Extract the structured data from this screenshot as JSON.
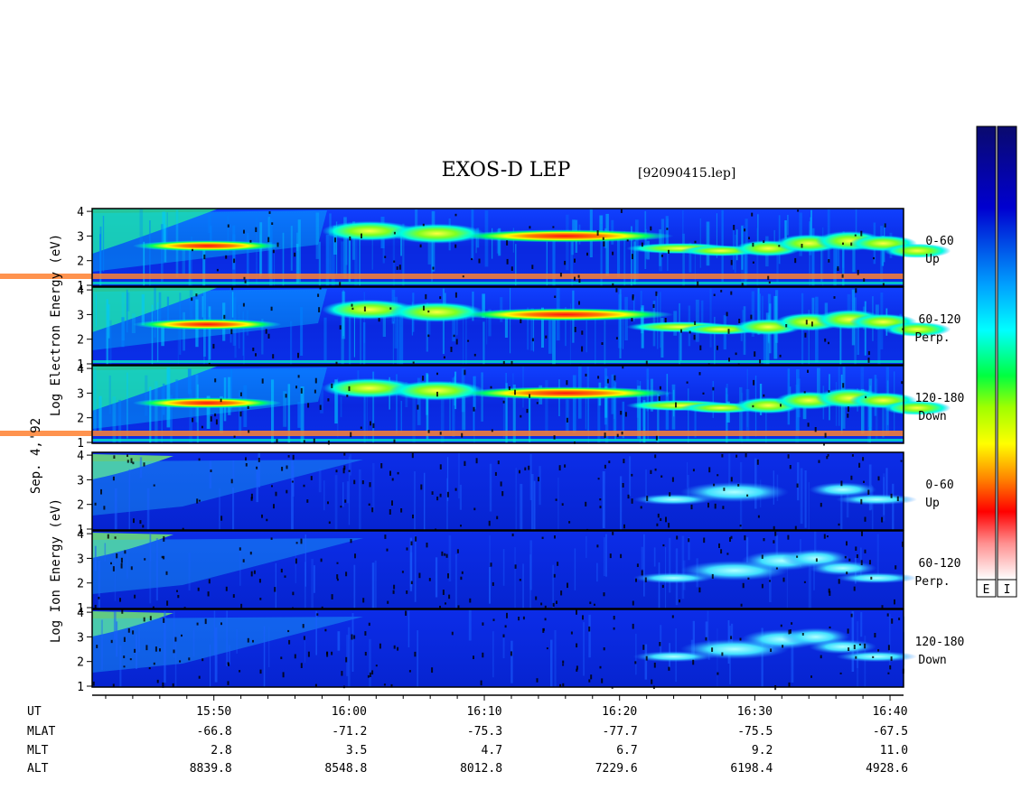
{
  "header": {
    "title": "EXOS-D LEP",
    "filename": "[92090415.lep]"
  },
  "date_label": "Sep. 4,'92",
  "colorbar_labels": [
    "E",
    "I"
  ],
  "chart_data": {
    "type": "heatmap",
    "time_range": [
      "15:41",
      "16:41"
    ],
    "y_ticks": [
      "1",
      "2",
      "3",
      "4"
    ],
    "groups": [
      {
        "name": "electron",
        "ylabel_lines": [
          "Log",
          "Electron",
          "Energy",
          "(eV)"
        ],
        "panels": [
          {
            "pitch": "0-60",
            "dir": "Up"
          },
          {
            "pitch": "60-120",
            "dir": "Perp."
          },
          {
            "pitch": "120-180",
            "dir": "Down"
          }
        ]
      },
      {
        "name": "ion",
        "ylabel_lines": [
          "Log",
          "Ion",
          "Energy",
          "(eV)"
        ],
        "panels": [
          {
            "pitch": "0-60",
            "dir": "Up"
          },
          {
            "pitch": "60-120",
            "dir": "Perp."
          },
          {
            "pitch": "120-180",
            "dir": "Down"
          }
        ]
      }
    ],
    "ephemeris": {
      "row_labels": [
        "UT",
        "MLAT",
        "MLT",
        "ALT"
      ],
      "columns": [
        {
          "UT": "15:50",
          "MLAT": "-66.8",
          "MLT": "2.8",
          "ALT": "8839.8"
        },
        {
          "UT": "16:00",
          "MLAT": "-71.2",
          "MLT": "3.5",
          "ALT": "8548.8"
        },
        {
          "UT": "16:10",
          "MLAT": "-75.3",
          "MLT": "4.7",
          "ALT": "8012.8"
        },
        {
          "UT": "16:20",
          "MLAT": "-77.7",
          "MLT": "6.7",
          "ALT": "7229.6"
        },
        {
          "UT": "16:30",
          "MLAT": "-75.5",
          "MLT": "9.2",
          "ALT": "6198.4"
        },
        {
          "UT": "16:40",
          "MLAT": "-67.5",
          "MLT": "11.0",
          "ALT": "4928.6"
        }
      ]
    },
    "colorscale": [
      "#fbe9ee",
      "#ff0000",
      "#ffa500",
      "#ffff00",
      "#00ff00",
      "#00ffff",
      "#0050ff",
      "#000080"
    ]
  }
}
